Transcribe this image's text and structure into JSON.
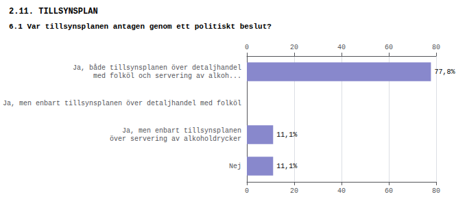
{
  "chart_data": {
    "type": "bar",
    "orientation": "horizontal",
    "title": "2.11. TILLSYNSPLAN",
    "subtitle": "6.1 Var tillsynsplanen antagen genom ett politiskt beslut?",
    "categories": [
      "Nej",
      "Ja, men enbart tillsynsplanen\növer servering av alkoholdrycker",
      "Ja, men enbart tillsynsplanen över detaljhandel med folköl",
      "Ja, både tillsynsplanen över detaljhandel\nmed folköl och servering av alkoh..."
    ],
    "values": [
      11.1,
      11.1,
      0.0,
      77.8
    ],
    "value_labels": [
      "11,1%",
      "11,1%",
      null,
      "77,8%"
    ],
    "data_labels": true,
    "color": "#8888cc",
    "xlim": [
      0,
      80
    ],
    "xticks": [
      0,
      20,
      40,
      60,
      80
    ],
    "grid": true
  }
}
